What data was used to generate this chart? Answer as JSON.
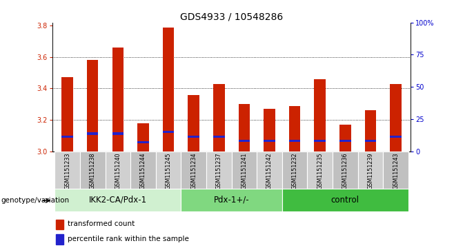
{
  "title": "GDS4933 / 10548286",
  "samples": [
    "GSM1151233",
    "GSM1151238",
    "GSM1151240",
    "GSM1151244",
    "GSM1151245",
    "GSM1151234",
    "GSM1151237",
    "GSM1151241",
    "GSM1151242",
    "GSM1151232",
    "GSM1151235",
    "GSM1151236",
    "GSM1151239",
    "GSM1151243"
  ],
  "transformed_counts": [
    3.47,
    3.58,
    3.66,
    3.18,
    3.79,
    3.36,
    3.43,
    3.3,
    3.27,
    3.29,
    3.46,
    3.17,
    3.26,
    3.43
  ],
  "percentile_bottoms": [
    3.085,
    3.105,
    3.105,
    3.05,
    3.115,
    3.085,
    3.085,
    3.058,
    3.058,
    3.058,
    3.058,
    3.058,
    3.058,
    3.085
  ],
  "percentile_heights": [
    0.016,
    0.016,
    0.016,
    0.016,
    0.016,
    0.016,
    0.016,
    0.016,
    0.016,
    0.016,
    0.016,
    0.016,
    0.016,
    0.016
  ],
  "groups": [
    {
      "label": "IKK2-CA/Pdx-1",
      "start": 0,
      "end": 5,
      "color": "#d0f0d0"
    },
    {
      "label": "Pdx-1+/-",
      "start": 5,
      "end": 9,
      "color": "#80d880"
    },
    {
      "label": "control",
      "start": 9,
      "end": 14,
      "color": "#40bc40"
    }
  ],
  "bar_color": "#cc2200",
  "percentile_color": "#2222cc",
  "bar_width": 0.45,
  "ylim": [
    3.0,
    3.82
  ],
  "yticks": [
    3.0,
    3.2,
    3.4,
    3.6,
    3.8
  ],
  "y2ticks": [
    0,
    25,
    50,
    75,
    100
  ],
  "y2labels": [
    "0",
    "25",
    "50",
    "75",
    "100%"
  ],
  "xlabel": "genotype/variation",
  "sample_bg_odd": "#d0d0d0",
  "sample_bg_even": "#c0c0c0",
  "plot_bg": "#ffffff",
  "title_fontsize": 10,
  "tick_fontsize": 7,
  "label_fontsize": 8,
  "group_label_fontsize": 8.5
}
